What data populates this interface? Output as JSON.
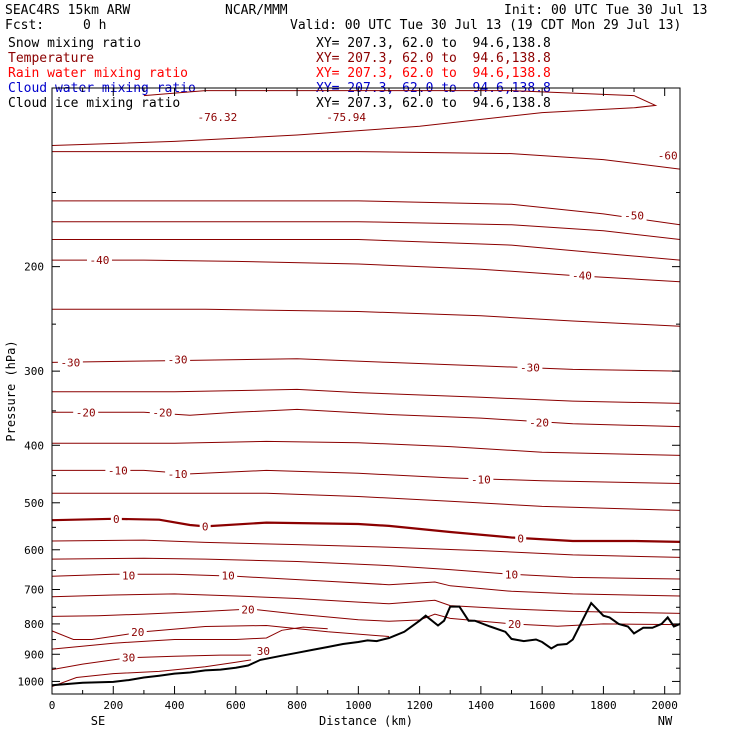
{
  "header": {
    "model": "SEAC4RS 15km ARW",
    "org": "NCAR/MMM",
    "init": "Init: 00 UTC Tue 30 Jul 13",
    "fcst_label": "Fcst:",
    "fcst_value": "0 h",
    "valid": "Valid: 00 UTC Tue 30 Jul 13 (19 CDT Mon 29 Jul 13)",
    "fields": [
      {
        "name": "Snow mixing ratio",
        "xy": "XY= 207.3, 62.0 to  94.6,138.8",
        "color": "#000000"
      },
      {
        "name": "Temperature",
        "xy": "XY= 207.3, 62.0 to  94.6,138.8",
        "color": "#8b0000"
      },
      {
        "name": "Rain water mixing ratio",
        "xy": "XY= 207.3, 62.0 to  94.6,138.8",
        "color": "#ff0000"
      },
      {
        "name": "Cloud water mixing ratio",
        "xy": "XY= 207.3, 62.0 to  94.6,138.8",
        "color": "#0000cc"
      },
      {
        "name": "Cloud ice mixing ratio",
        "xy": "XY= 207.3, 62.0 to  94.6,138.8",
        "color": "#000000"
      }
    ]
  },
  "chart_data": {
    "type": "line",
    "xlabel": "Distance (km)",
    "ylabel": "Pressure (hPa)",
    "x_range": [
      0,
      2050
    ],
    "y_range": [
      1050,
      100
    ],
    "y_log": true,
    "x_ticks": [
      "0",
      "200",
      "400",
      "600",
      "800",
      "1000",
      "1200",
      "1400",
      "1600",
      "1800",
      "2000"
    ],
    "y_ticks": [
      "200",
      "300",
      "400",
      "500",
      "600",
      "700",
      "800",
      "900",
      "1000"
    ],
    "end_labels": {
      "left": "SE",
      "right": "NW"
    },
    "series": [
      {
        "level": -75,
        "points": [
          [
            0,
            125
          ],
          [
            400,
            123
          ],
          [
            800,
            120
          ],
          [
            1200,
            116
          ],
          [
            1600,
            110
          ],
          [
            1900,
            108
          ],
          [
            1970,
            107
          ],
          [
            1900,
            103
          ],
          [
            1500,
            101
          ],
          [
            1000,
            101
          ],
          [
            500,
            101
          ],
          [
            300,
            103
          ]
        ]
      },
      {
        "level": -60,
        "points": [
          [
            0,
            128
          ],
          [
            500,
            128
          ],
          [
            1000,
            128
          ],
          [
            1500,
            129
          ],
          [
            1800,
            132
          ],
          [
            2050,
            137
          ]
        ]
      },
      {
        "level": -55,
        "points": [
          [
            0,
            155
          ],
          [
            500,
            155
          ],
          [
            1000,
            155
          ],
          [
            1500,
            157
          ],
          [
            1800,
            163
          ],
          [
            2050,
            170
          ]
        ]
      },
      {
        "level": -50,
        "points": [
          [
            0,
            168
          ],
          [
            500,
            168
          ],
          [
            1000,
            168
          ],
          [
            1500,
            170
          ],
          [
            1800,
            174
          ],
          [
            2050,
            180
          ]
        ]
      },
      {
        "level": -45,
        "points": [
          [
            0,
            180
          ],
          [
            500,
            180
          ],
          [
            1000,
            180
          ],
          [
            1500,
            184
          ],
          [
            1800,
            190
          ],
          [
            2050,
            195
          ]
        ]
      },
      {
        "level": -40,
        "points": [
          [
            0,
            195
          ],
          [
            300,
            195
          ],
          [
            600,
            196
          ],
          [
            1000,
            198
          ],
          [
            1400,
            202
          ],
          [
            1700,
            207
          ],
          [
            2050,
            212
          ]
        ]
      },
      {
        "level": -35,
        "points": [
          [
            0,
            236
          ],
          [
            500,
            236
          ],
          [
            1000,
            238
          ],
          [
            1400,
            242
          ],
          [
            1700,
            247
          ],
          [
            2050,
            252
          ]
        ]
      },
      {
        "level": -30,
        "points": [
          [
            0,
            290
          ],
          [
            400,
            288
          ],
          [
            800,
            286
          ],
          [
            1100,
            290
          ],
          [
            1400,
            294
          ],
          [
            1700,
            298
          ],
          [
            2050,
            300
          ]
        ]
      },
      {
        "level": -25,
        "points": [
          [
            0,
            325
          ],
          [
            400,
            325
          ],
          [
            800,
            322
          ],
          [
            1000,
            326
          ],
          [
            1400,
            332
          ],
          [
            1700,
            337
          ],
          [
            2050,
            340
          ]
        ]
      },
      {
        "level": -20,
        "points": [
          [
            0,
            352
          ],
          [
            300,
            352
          ],
          [
            450,
            356
          ],
          [
            600,
            352
          ],
          [
            800,
            348
          ],
          [
            1100,
            355
          ],
          [
            1400,
            360
          ],
          [
            1700,
            368
          ],
          [
            2050,
            372
          ]
        ]
      },
      {
        "level": -15,
        "points": [
          [
            0,
            397
          ],
          [
            400,
            397
          ],
          [
            700,
            394
          ],
          [
            1000,
            396
          ],
          [
            1300,
            402
          ],
          [
            1600,
            411
          ],
          [
            2050,
            416
          ]
        ]
      },
      {
        "level": -10,
        "points": [
          [
            0,
            441
          ],
          [
            300,
            441
          ],
          [
            450,
            447
          ],
          [
            700,
            441
          ],
          [
            1000,
            446
          ],
          [
            1300,
            454
          ],
          [
            1600,
            459
          ],
          [
            2050,
            464
          ]
        ]
      },
      {
        "level": -5,
        "points": [
          [
            0,
            482
          ],
          [
            400,
            482
          ],
          [
            700,
            482
          ],
          [
            1000,
            488
          ],
          [
            1300,
            497
          ],
          [
            1600,
            507
          ],
          [
            2050,
            515
          ]
        ]
      },
      {
        "level": 0,
        "points": [
          [
            0,
            535
          ],
          [
            200,
            532
          ],
          [
            350,
            534
          ],
          [
            450,
            545
          ],
          [
            500,
            548
          ],
          [
            700,
            540
          ],
          [
            1000,
            543
          ],
          [
            1100,
            547
          ],
          [
            1300,
            560
          ],
          [
            1500,
            572
          ],
          [
            1700,
            580
          ],
          [
            1900,
            580
          ],
          [
            2050,
            582
          ]
        ]
      },
      {
        "level": 5,
        "points": [
          [
            0,
            580
          ],
          [
            300,
            578
          ],
          [
            500,
            583
          ],
          [
            800,
            588
          ],
          [
            1100,
            594
          ],
          [
            1400,
            602
          ],
          [
            1700,
            612
          ],
          [
            2050,
            618
          ]
        ]
      },
      {
        "level": 10,
        "points": [
          [
            0,
            622
          ],
          [
            300,
            620
          ],
          [
            500,
            622
          ],
          [
            800,
            628
          ],
          [
            1100,
            638
          ],
          [
            1300,
            648
          ],
          [
            1500,
            660
          ],
          [
            1700,
            668
          ],
          [
            2050,
            672
          ]
        ]
      },
      {
        "level": 10,
        "points": [
          [
            0,
            665
          ],
          [
            200,
            660
          ],
          [
            400,
            660
          ],
          [
            600,
            665
          ],
          [
            900,
            678
          ],
          [
            1100,
            687
          ],
          [
            1250,
            680
          ],
          [
            1300,
            690
          ],
          [
            1500,
            705
          ],
          [
            1700,
            712
          ],
          [
            2050,
            718
          ]
        ]
      },
      {
        "level": 15,
        "points": [
          [
            0,
            720
          ],
          [
            200,
            715
          ],
          [
            400,
            712
          ],
          [
            600,
            718
          ],
          [
            800,
            725
          ],
          [
            1000,
            735
          ],
          [
            1100,
            740
          ],
          [
            1250,
            730
          ],
          [
            1300,
            745
          ],
          [
            1500,
            755
          ],
          [
            1700,
            762
          ],
          [
            2050,
            768
          ]
        ]
      },
      {
        "level": 20,
        "points": [
          [
            0,
            777
          ],
          [
            150,
            775
          ],
          [
            300,
            770
          ],
          [
            500,
            762
          ],
          [
            650,
            755
          ],
          [
            800,
            770
          ],
          [
            1000,
            787
          ],
          [
            1100,
            792
          ],
          [
            1200,
            788
          ],
          [
            1250,
            770
          ],
          [
            1300,
            783
          ],
          [
            1500,
            800
          ],
          [
            1650,
            807
          ],
          [
            1800,
            800
          ],
          [
            2050,
            802
          ]
        ]
      },
      {
        "level": 20,
        "points": [
          [
            0,
            822
          ],
          [
            70,
            850
          ],
          [
            130,
            850
          ],
          [
            300,
            825
          ],
          [
            500,
            808
          ],
          [
            700,
            805
          ],
          [
            900,
            825
          ],
          [
            1100,
            840
          ]
        ]
      },
      {
        "level": 25,
        "points": [
          [
            0,
            882
          ],
          [
            200,
            862
          ],
          [
            400,
            850
          ],
          [
            600,
            850
          ],
          [
            700,
            845
          ],
          [
            750,
            820
          ],
          [
            820,
            810
          ],
          [
            900,
            815
          ]
        ]
      },
      {
        "level": 30,
        "points": [
          [
            0,
            955
          ],
          [
            100,
            935
          ],
          [
            250,
            912
          ],
          [
            400,
            907
          ],
          [
            550,
            903
          ],
          [
            650,
            903
          ]
        ]
      },
      {
        "level": 30,
        "points": [
          [
            0,
            1020
          ],
          [
            80,
            985
          ],
          [
            200,
            970
          ],
          [
            350,
            962
          ],
          [
            500,
            945
          ],
          [
            600,
            928
          ],
          [
            650,
            920
          ]
        ]
      }
    ],
    "level_labels": [
      {
        "text": "-76.32",
        "x": 540,
        "p": 112
      },
      {
        "text": "-75.94",
        "x": 960,
        "p": 112
      },
      {
        "text": "-60",
        "x": 2010,
        "p": 130
      },
      {
        "text": "-50",
        "x": 1900,
        "p": 164
      },
      {
        "text": "-40",
        "x": 155,
        "p": 195
      },
      {
        "text": "-40",
        "x": 1730,
        "p": 207
      },
      {
        "text": "-30",
        "x": 60,
        "p": 290
      },
      {
        "text": "-30",
        "x": 410,
        "p": 287
      },
      {
        "text": "-30",
        "x": 1560,
        "p": 296
      },
      {
        "text": "-20",
        "x": 110,
        "p": 352
      },
      {
        "text": "-20",
        "x": 360,
        "p": 352
      },
      {
        "text": "-20",
        "x": 1590,
        "p": 366
      },
      {
        "text": "-10",
        "x": 215,
        "p": 441
      },
      {
        "text": "-10",
        "x": 410,
        "p": 447
      },
      {
        "text": "-10",
        "x": 1400,
        "p": 457
      },
      {
        "text": "0",
        "x": 210,
        "p": 532
      },
      {
        "text": "0",
        "x": 500,
        "p": 548
      },
      {
        "text": "0",
        "x": 1530,
        "p": 574
      },
      {
        "text": "10",
        "x": 250,
        "p": 663
      },
      {
        "text": "10",
        "x": 575,
        "p": 663
      },
      {
        "text": "10",
        "x": 1500,
        "p": 661
      },
      {
        "text": "20",
        "x": 640,
        "p": 757
      },
      {
        "text": "20",
        "x": 280,
        "p": 825
      },
      {
        "text": "20",
        "x": 1510,
        "p": 800
      },
      {
        "text": "30",
        "x": 250,
        "p": 912
      },
      {
        "text": "30",
        "x": 690,
        "p": 888
      }
    ],
    "terrain": [
      [
        0,
        1015
      ],
      [
        50,
        1010
      ],
      [
        100,
        1005
      ],
      [
        200,
        1002
      ],
      [
        250,
        995
      ],
      [
        300,
        985
      ],
      [
        350,
        978
      ],
      [
        400,
        970
      ],
      [
        450,
        966
      ],
      [
        500,
        958
      ],
      [
        550,
        955
      ],
      [
        600,
        948
      ],
      [
        640,
        940
      ],
      [
        680,
        920
      ],
      [
        750,
        905
      ],
      [
        800,
        895
      ],
      [
        850,
        885
      ],
      [
        900,
        875
      ],
      [
        950,
        865
      ],
      [
        1000,
        858
      ],
      [
        1030,
        853
      ],
      [
        1060,
        855
      ],
      [
        1100,
        845
      ],
      [
        1150,
        825
      ],
      [
        1200,
        790
      ],
      [
        1220,
        775
      ],
      [
        1260,
        805
      ],
      [
        1280,
        790
      ],
      [
        1300,
        748
      ],
      [
        1330,
        748
      ],
      [
        1360,
        790
      ],
      [
        1380,
        790
      ],
      [
        1430,
        808
      ],
      [
        1480,
        825
      ],
      [
        1500,
        848
      ],
      [
        1540,
        855
      ],
      [
        1580,
        850
      ],
      [
        1600,
        858
      ],
      [
        1630,
        880
      ],
      [
        1650,
        868
      ],
      [
        1680,
        865
      ],
      [
        1700,
        850
      ],
      [
        1760,
        738
      ],
      [
        1800,
        775
      ],
      [
        1820,
        780
      ],
      [
        1850,
        800
      ],
      [
        1880,
        808
      ],
      [
        1900,
        830
      ],
      [
        1930,
        812
      ],
      [
        1960,
        812
      ],
      [
        1990,
        800
      ],
      [
        2010,
        780
      ],
      [
        2030,
        808
      ],
      [
        2050,
        800
      ]
    ]
  }
}
